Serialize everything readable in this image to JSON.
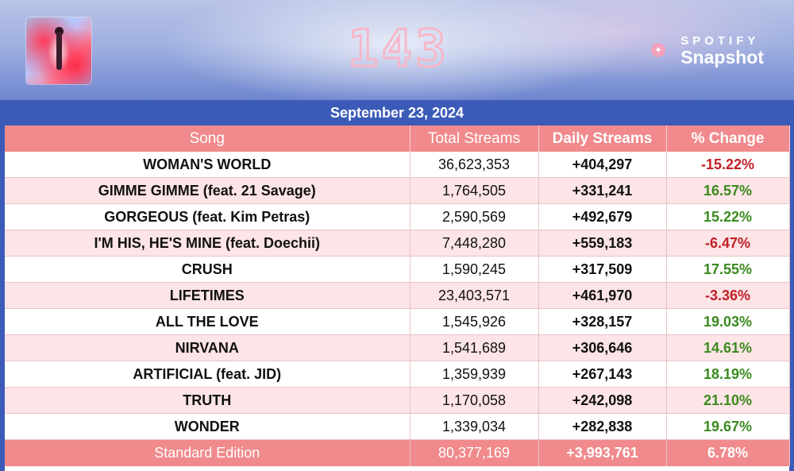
{
  "header": {
    "album_logo": "143",
    "brand_top": "SPOTIFY",
    "brand_bottom": "Snapshot",
    "twitter_icon": "bird-icon"
  },
  "date": "September 23, 2024",
  "columns": [
    "Song",
    "Total Streams",
    "Daily Streams",
    "% Change"
  ],
  "rows": [
    {
      "song": "WOMAN'S WORLD",
      "total": "36,623,353",
      "daily": "+404,297",
      "change": "-15.22%",
      "trend": "neg"
    },
    {
      "song": "GIMME GIMME (feat. 21 Savage)",
      "total": "1,764,505",
      "daily": "+331,241",
      "change": "16.57%",
      "trend": "pos"
    },
    {
      "song": "GORGEOUS (feat. Kim Petras)",
      "total": "2,590,569",
      "daily": "+492,679",
      "change": "15.22%",
      "trend": "pos"
    },
    {
      "song": "I'M HIS, HE'S MINE (feat. Doechii)",
      "total": "7,448,280",
      "daily": "+559,183",
      "change": "-6.47%",
      "trend": "neg"
    },
    {
      "song": "CRUSH",
      "total": "1,590,245",
      "daily": "+317,509",
      "change": "17.55%",
      "trend": "pos"
    },
    {
      "song": "LIFETIMES",
      "total": "23,403,571",
      "daily": "+461,970",
      "change": "-3.36%",
      "trend": "neg"
    },
    {
      "song": "ALL THE LOVE",
      "total": "1,545,926",
      "daily": "+328,157",
      "change": "19.03%",
      "trend": "pos"
    },
    {
      "song": "NIRVANA",
      "total": "1,541,689",
      "daily": "+306,646",
      "change": "14.61%",
      "trend": "pos"
    },
    {
      "song": "ARTIFICIAL (feat. JID)",
      "total": "1,359,939",
      "daily": "+267,143",
      "change": "18.19%",
      "trend": "pos"
    },
    {
      "song": "TRUTH",
      "total": "1,170,058",
      "daily": "+242,098",
      "change": "21.10%",
      "trend": "pos"
    },
    {
      "song": "WONDER",
      "total": "1,339,034",
      "daily": "+282,838",
      "change": "19.67%",
      "trend": "pos"
    }
  ],
  "footer": {
    "song": "Standard Edition",
    "total": "80,377,169",
    "daily": "+3,993,761",
    "change": "6.78%"
  },
  "colors": {
    "header_bg": "#f08a8c",
    "date_bar": "#3c5bb9",
    "alt_row": "#fde4e6",
    "negative": "#c01f26",
    "positive": "#3a8a1e"
  }
}
